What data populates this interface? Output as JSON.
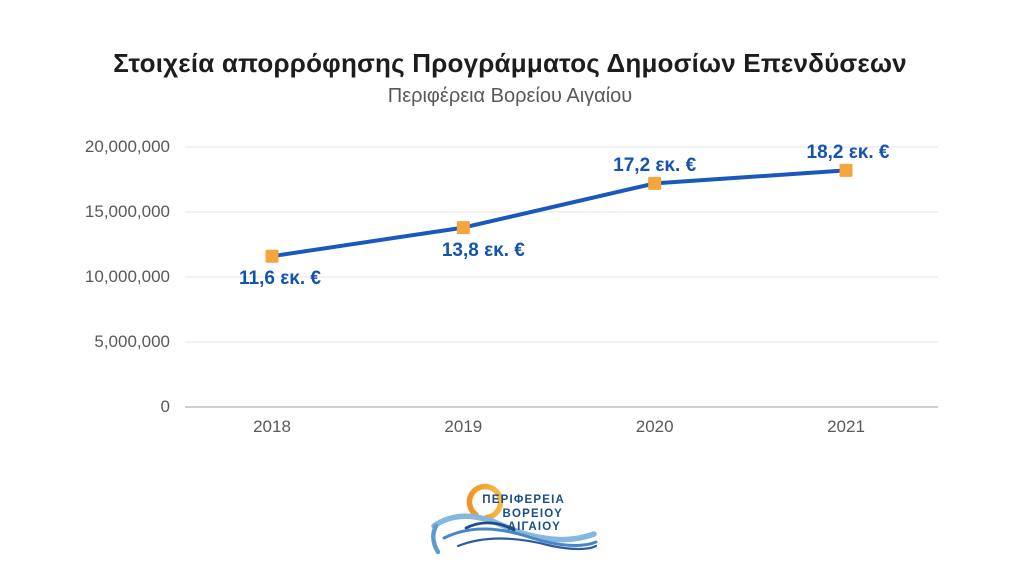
{
  "chart_data": {
    "type": "line",
    "title": "Στοιχεία απορρόφησης Προγράμματος Δημοσίων Επενδύσεων",
    "subtitle": "Περιφέρεια Βορείου Αιγαίου",
    "categories": [
      "2018",
      "2019",
      "2020",
      "2021"
    ],
    "values": [
      11600000,
      13800000,
      17200000,
      18200000
    ],
    "point_labels": [
      "11,6 εκ. €",
      "13,8 εκ. €",
      "17,2 εκ. €",
      "18,2 εκ. €"
    ],
    "label_side": [
      "below",
      "below",
      "above",
      "above"
    ],
    "label_dx": [
      8,
      20,
      0,
      2
    ],
    "y_tick_labels": [
      "20,000,000",
      "15,000,000",
      "10,000,000",
      "5,000,000",
      "0"
    ],
    "y_tick_values": [
      20000000,
      15000000,
      10000000,
      5000000,
      0
    ],
    "ylim": [
      0,
      20000000
    ],
    "xlabel": "",
    "ylabel": "",
    "grid": true,
    "legend": "none",
    "line_color": "#1b58bb",
    "marker_color": "#f4a53e",
    "point_label_color": "#1453ae",
    "grid_color": "#e5e5e5",
    "axis_line_color": "#bfbfbf",
    "axis_text_color": "#595959"
  },
  "logo": {
    "line1": "ΠΕΡΙΦΕΡΕΙΑ",
    "line2": "ΒΟΡΕΙΟΥ",
    "line3": "ΑΙΓΑΙΟΥ",
    "text_color": "#1d4d87",
    "sun_color_start": "#f8c24c",
    "sun_color_end": "#ec8c1e",
    "wave_light": "#85b7e0",
    "wave_medium": "#4a86c4",
    "wave_dark": "#2a5d9f",
    "wave_navy": "#1d4d87"
  }
}
